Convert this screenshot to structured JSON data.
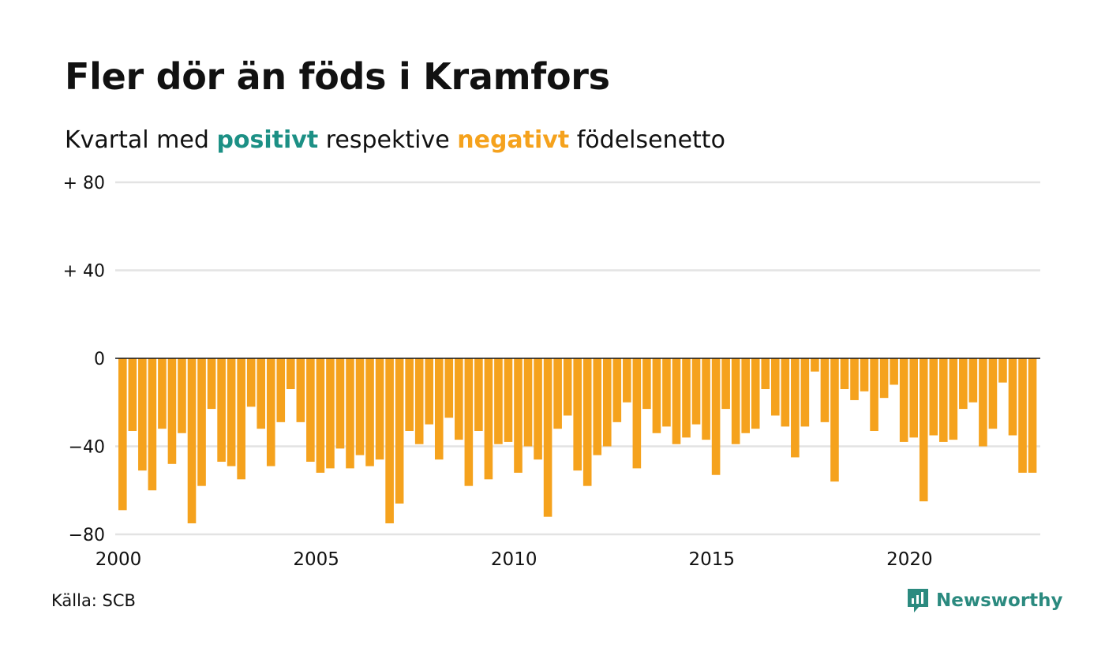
{
  "header": {
    "title": "Fler dör än föds i Kramfors",
    "subtitle_prefix": "Kvartal med",
    "subtitle_positive": "positivt",
    "subtitle_middle": "respektive",
    "subtitle_negative": "negativt",
    "subtitle_suffix": "födelsenetto"
  },
  "footer": {
    "source": "Källa: SCB",
    "brand": "Newsworthy",
    "brand_icon": "newsworthy-logo-icon"
  },
  "colors": {
    "positive": "#1c9085",
    "negative": "#f5a21d",
    "grid": "#e3e3e3",
    "zero_line": "#111111",
    "brand": "#2b8a7f"
  },
  "chart_data": {
    "type": "bar",
    "title": "Fler dör än föds i Kramfors",
    "subtitle": "Kvartal med positivt respektive negativt födelsenetto",
    "ylim": [
      -80,
      80
    ],
    "y_ticks": [
      {
        "value": 80,
        "label": "+ 80"
      },
      {
        "value": 40,
        "label": "+ 40"
      },
      {
        "value": 0,
        "label": "0"
      },
      {
        "value": -40,
        "label": "−40"
      },
      {
        "value": -80,
        "label": "−80"
      }
    ],
    "x_ticks": [
      "2000",
      "2005",
      "2010",
      "2015",
      "2020"
    ],
    "start_year": 2000,
    "grid": true,
    "legend": "none",
    "series": [
      {
        "values": [
          -69,
          -33,
          -51,
          -60,
          -32,
          -48,
          -34,
          -75,
          -58,
          -23,
          -47,
          -49,
          -55,
          -22,
          -32,
          -49,
          -29,
          -14,
          -29,
          -47,
          -52,
          -50,
          -41,
          -50,
          -44,
          -49,
          -46,
          -75,
          -66,
          -33,
          -39,
          -30,
          -46,
          -27,
          -37,
          -58,
          -33,
          -55,
          -39,
          -38,
          -52,
          -40,
          -46,
          -72,
          -32,
          -26,
          -51,
          -58,
          -44,
          -40,
          -29,
          -20,
          -50,
          -23,
          -34,
          -31,
          -39,
          -36,
          -30,
          -37,
          -53,
          -23,
          -39,
          -34,
          -32,
          -14,
          -26,
          -31,
          -45,
          -31,
          -6,
          -29,
          -56,
          -14,
          -19,
          -15,
          -33,
          -18,
          -12,
          -38,
          -36,
          -65,
          -35,
          -38,
          -37,
          -23,
          -20,
          -40,
          -32,
          -11,
          -35,
          -52,
          -52
        ]
      }
    ]
  }
}
